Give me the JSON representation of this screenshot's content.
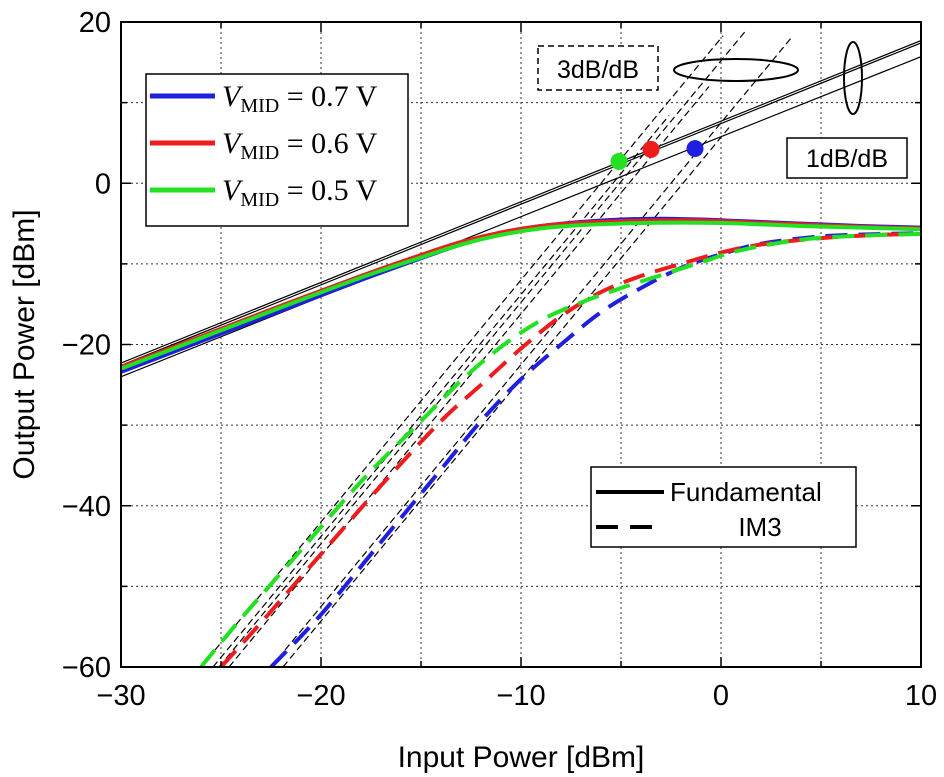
{
  "chart_data": {
    "type": "line",
    "title": "",
    "xlabel": "Input Power [dBm]",
    "ylabel": "Output Power [dBm]",
    "xlim": [
      -30,
      10
    ],
    "ylim": [
      -60,
      20
    ],
    "x_ticks": [
      -30,
      -20,
      -10,
      0,
      10
    ],
    "y_ticks": [
      -60,
      -40,
      -20,
      0,
      20
    ],
    "x_tick_labels": [
      "−30",
      "−20",
      "−10",
      "0",
      "10"
    ],
    "y_tick_labels": [
      "−60",
      "−40",
      "−20",
      "0",
      "20"
    ],
    "grid": true,
    "grid_style": "dotted",
    "legend_position": "top-left",
    "series_legend": [
      {
        "prefix": "V",
        "subscript": "MID",
        "value": " = 0.7 V",
        "color": "#1f1fe0"
      },
      {
        "prefix": "V",
        "subscript": "MID",
        "value": " = 0.6 V",
        "color": "#ee1c1c"
      },
      {
        "prefix": "V",
        "subscript": "MID",
        "value": " = 0.5 V",
        "color": "#22e022"
      }
    ],
    "style_legend": {
      "position": "bottom-right",
      "items": [
        {
          "label": "Fundamental",
          "linestyle": "solid"
        },
        {
          "label": "IM3",
          "linestyle": "dashed"
        }
      ]
    },
    "series": [
      {
        "vmid": "0.7 V",
        "kind": "Fundamental",
        "color": "#1f1fe0",
        "x": [
          -30,
          -26,
          -22,
          -18,
          -15,
          -13,
          -11,
          -9,
          -7,
          -5,
          -3,
          -1,
          1,
          4,
          7,
          10
        ],
        "y": [
          -23.4,
          -19.6,
          -15.8,
          -12.0,
          -9.3,
          -7.6,
          -6.2,
          -5.3,
          -4.8,
          -4.5,
          -4.4,
          -4.5,
          -4.7,
          -5.0,
          -5.3,
          -5.5
        ]
      },
      {
        "vmid": "0.6 V",
        "kind": "Fundamental",
        "color": "#ee1c1c",
        "x": [
          -30,
          -26,
          -22,
          -18,
          -15,
          -13,
          -11,
          -9,
          -7,
          -5,
          -3,
          -1,
          1,
          4,
          7,
          10
        ],
        "y": [
          -22.8,
          -19.0,
          -15.2,
          -11.5,
          -8.9,
          -7.3,
          -6.1,
          -5.3,
          -4.9,
          -4.7,
          -4.6,
          -4.6,
          -4.8,
          -5.1,
          -5.4,
          -5.6
        ]
      },
      {
        "vmid": "0.5 V",
        "kind": "Fundamental",
        "color": "#22e022",
        "x": [
          -30,
          -26,
          -22,
          -18,
          -15,
          -13,
          -11,
          -9,
          -7,
          -5,
          -3,
          -1,
          1,
          4,
          7,
          10
        ],
        "y": [
          -23.0,
          -19.2,
          -15.4,
          -11.7,
          -9.2,
          -7.6,
          -6.4,
          -5.6,
          -5.2,
          -5.0,
          -4.9,
          -4.9,
          -5.0,
          -5.3,
          -5.5,
          -5.7
        ]
      },
      {
        "vmid": "0.7 V",
        "kind": "IM3",
        "color": "#1f1fe0",
        "x": [
          -22.5,
          -20,
          -17,
          -14,
          -12,
          -10,
          -8,
          -6,
          -4,
          -2,
          0,
          2,
          5,
          8,
          10
        ],
        "y": [
          -60,
          -53.5,
          -44.5,
          -35.5,
          -29.5,
          -24.3,
          -20.0,
          -16.0,
          -13.0,
          -10.5,
          -8.8,
          -7.5,
          -6.6,
          -6.3,
          -6.2
        ]
      },
      {
        "vmid": "0.6 V",
        "kind": "IM3",
        "color": "#ee1c1c",
        "x": [
          -25,
          -23,
          -20,
          -17,
          -14,
          -12,
          -10,
          -8,
          -6,
          -4,
          -2,
          0,
          2,
          5,
          8,
          10
        ],
        "y": [
          -60,
          -54.5,
          -46.0,
          -37.5,
          -29.5,
          -25.0,
          -20.5,
          -16.5,
          -13.5,
          -11.5,
          -10.0,
          -8.6,
          -7.6,
          -6.8,
          -6.4,
          -6.3
        ]
      },
      {
        "vmid": "0.5 V",
        "kind": "IM3",
        "color": "#22e022",
        "x": [
          -26,
          -24,
          -21,
          -18,
          -15,
          -13,
          -11,
          -9,
          -7,
          -5,
          -3,
          -1,
          1,
          4,
          7,
          10
        ],
        "y": [
          -60,
          -54.0,
          -45.5,
          -37.0,
          -29.5,
          -24.5,
          -20.3,
          -17.0,
          -14.8,
          -13.0,
          -11.4,
          -9.8,
          -8.3,
          -7.0,
          -6.5,
          -6.3
        ]
      }
    ],
    "asymptotes": {
      "slope_1dB": [
        {
          "from": [
            -30,
            -22.3
          ],
          "to": [
            10,
            17.7
          ]
        },
        {
          "from": [
            -30,
            -22.6
          ],
          "to": [
            10,
            17.4
          ]
        },
        {
          "from": [
            -30,
            -24.0
          ],
          "to": [
            10,
            15.7
          ]
        }
      ],
      "slope_3dB": [
        {
          "from": [
            -25.1,
            -60
          ],
          "to": [
            -3.6,
            4.4
          ]
        },
        {
          "from": [
            -22.5,
            -60
          ],
          "to": [
            -1.3,
            3.6
          ]
        },
        {
          "from": [
            -26.0,
            -60
          ],
          "to": [
            -5.2,
            2.4
          ]
        },
        {
          "from": [
            -24.6,
            -60
          ],
          "to": [
            -0.6,
            12.0
          ]
        },
        {
          "from": [
            -21.9,
            -60
          ],
          "to": [
            0.4,
            6.9
          ]
        },
        {
          "from": [
            -25.4,
            -60
          ],
          "to": [
            -2.6,
            8.4
          ]
        },
        {
          "from": [
            -3.6,
            4.4
          ],
          "to": [
            1.2,
            18.8
          ]
        },
        {
          "from": [
            -1.3,
            3.6
          ],
          "to": [
            3.5,
            18.0
          ]
        },
        {
          "from": [
            -5.2,
            2.4
          ],
          "to": [
            0.1,
            18.3
          ]
        }
      ]
    },
    "intercept_points": [
      {
        "vmid": "0.7 V",
        "x": -1.3,
        "y": 4.3,
        "color": "#1f1fe0"
      },
      {
        "vmid": "0.6 V",
        "x": -3.5,
        "y": 4.2,
        "color": "#ee1c1c"
      },
      {
        "vmid": "0.5 V",
        "x": -5.1,
        "y": 2.7,
        "color": "#22e022"
      }
    ],
    "annotations": [
      {
        "text": "3dB/dB",
        "box": "dashed"
      },
      {
        "text": "1dB/dB",
        "box": "solid"
      }
    ]
  }
}
